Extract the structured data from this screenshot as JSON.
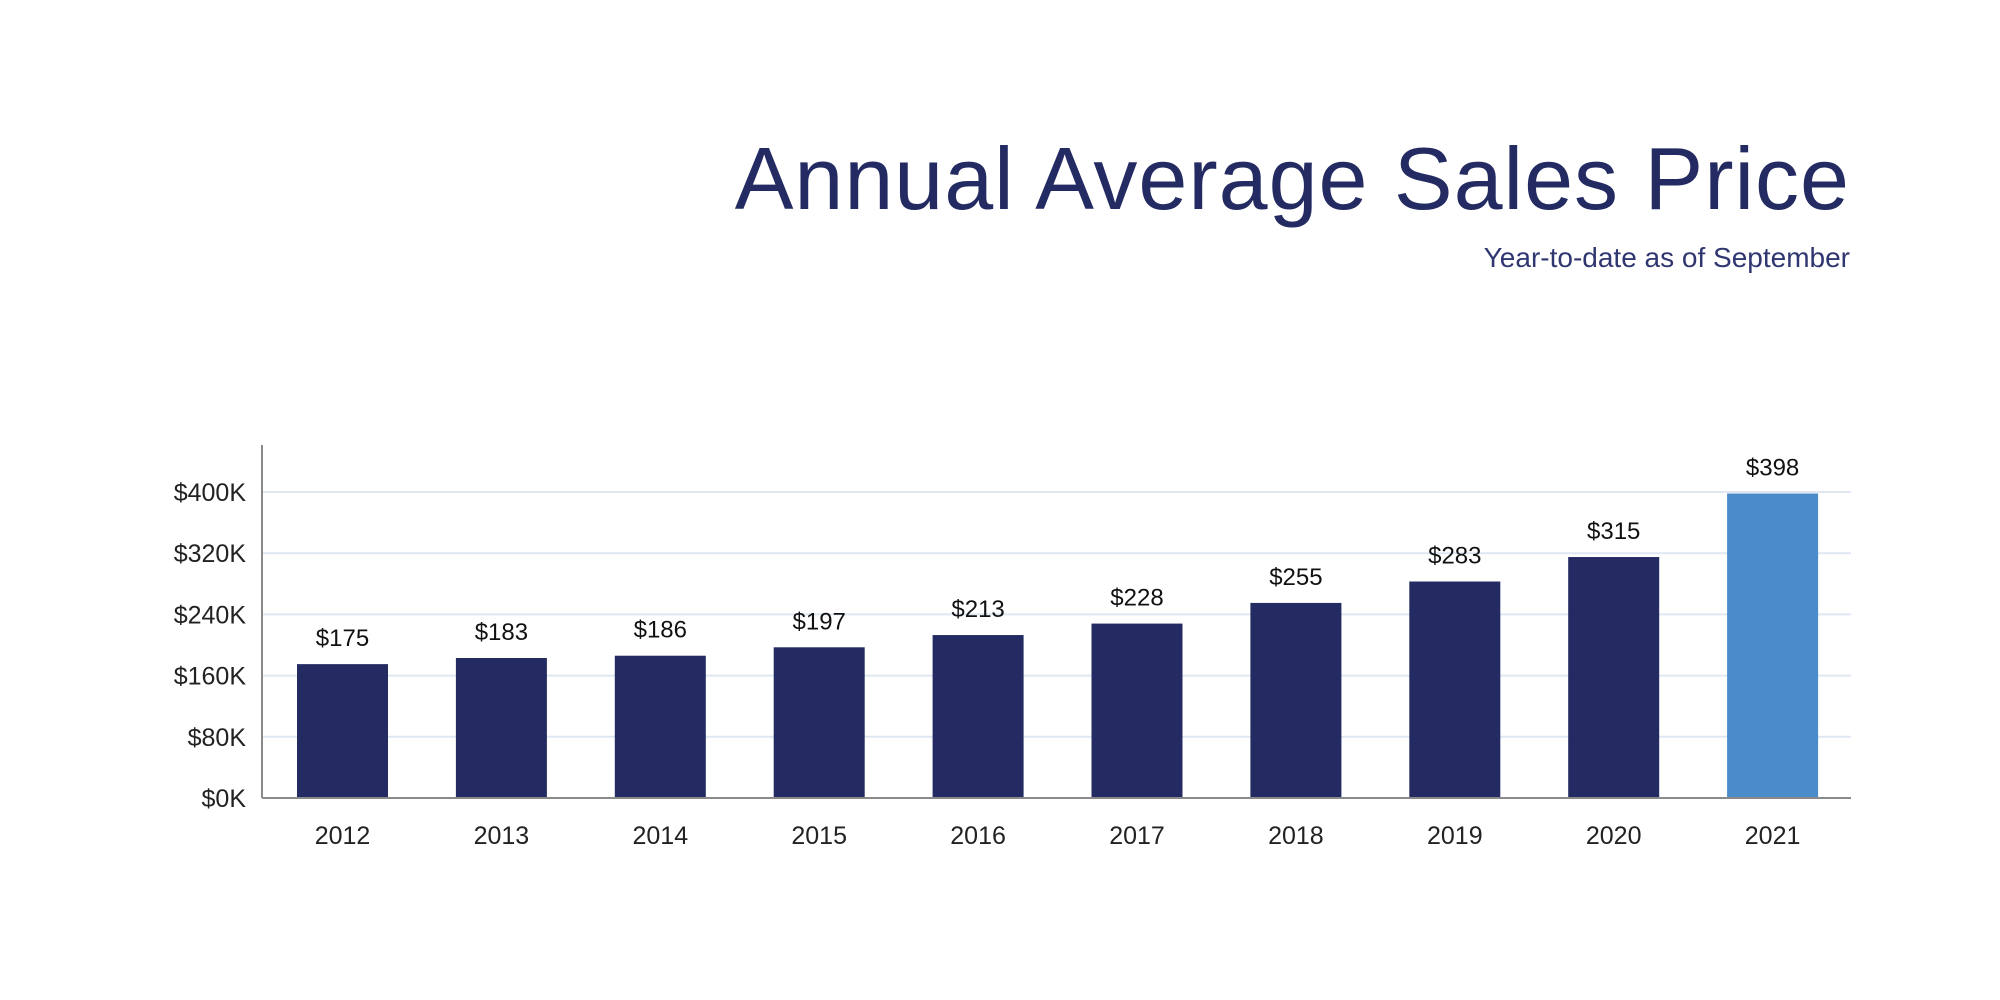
{
  "chart_data": {
    "type": "bar",
    "title": "Annual Average Sales Price",
    "subtitle": "Year-to-date as of September",
    "categories": [
      "2012",
      "2013",
      "2014",
      "2015",
      "2016",
      "2017",
      "2018",
      "2019",
      "2020",
      "2021"
    ],
    "values": [
      175,
      183,
      186,
      197,
      213,
      228,
      255,
      283,
      315,
      398
    ],
    "value_unit": "$K",
    "data_labels": [
      "$175",
      "$183",
      "$186",
      "$197",
      "$213",
      "$228",
      "$255",
      "$283",
      "$315",
      "$398"
    ],
    "yticks": [
      0,
      80,
      160,
      240,
      320,
      400
    ],
    "ytick_labels": [
      "$0K",
      "$80K",
      "$160K",
      "$240K",
      "$320K",
      "$400K"
    ],
    "ylim": [
      0,
      460
    ],
    "grid": true,
    "colors": {
      "bar": "#232b62",
      "highlight_bar": "#4a8bc9",
      "title": "#232b62",
      "grid": "#dfe7f2",
      "axis": "#8a8a8a"
    },
    "highlight_category": "2021"
  }
}
